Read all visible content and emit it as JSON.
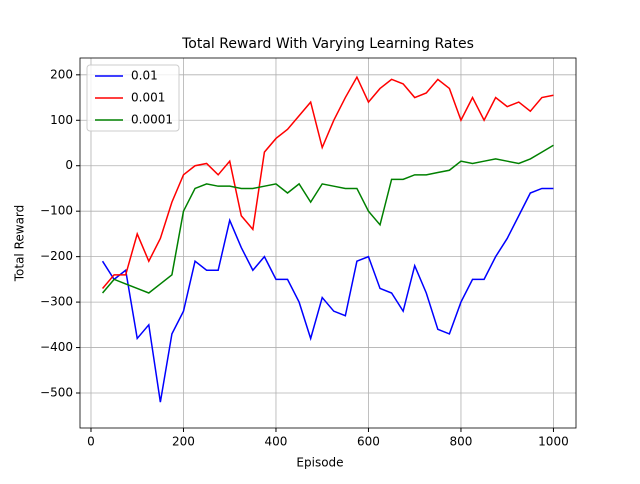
{
  "chart_data": {
    "type": "line",
    "title": "Total Reward With Varying Learning Rates",
    "xlabel": "Episode",
    "ylabel": "Total Reward",
    "x": [
      25,
      50,
      75,
      100,
      125,
      150,
      175,
      200,
      225,
      250,
      275,
      300,
      325,
      350,
      375,
      400,
      425,
      450,
      475,
      500,
      525,
      550,
      575,
      600,
      625,
      650,
      675,
      700,
      725,
      750,
      775,
      800,
      825,
      850,
      875,
      900,
      925,
      950,
      975,
      1000
    ],
    "series": [
      {
        "name": "0.01",
        "color": "#0000ff",
        "values": [
          -210,
          -250,
          -230,
          -380,
          -350,
          -520,
          -370,
          -320,
          -210,
          -230,
          -230,
          -120,
          -180,
          -230,
          -200,
          -250,
          -250,
          -300,
          -380,
          -290,
          -320,
          -330,
          -210,
          -200,
          -270,
          -280,
          -320,
          -220,
          -280,
          -360,
          -370,
          -300,
          -250,
          -250,
          -200,
          -160,
          -110,
          -60,
          -50,
          -50
        ]
      },
      {
        "name": "0.001",
        "color": "#ff0000",
        "values": [
          -270,
          -240,
          -240,
          -150,
          -210,
          -160,
          -80,
          -20,
          0,
          5,
          -20,
          10,
          -110,
          -140,
          30,
          60,
          80,
          110,
          140,
          40,
          100,
          150,
          195,
          140,
          170,
          190,
          180,
          150,
          160,
          190,
          170,
          100,
          150,
          100,
          150,
          130,
          140,
          120,
          150,
          155
        ]
      },
      {
        "name": "0.0001",
        "color": "#008000",
        "values": [
          -280,
          -250,
          -260,
          -270,
          -280,
          -260,
          -240,
          -100,
          -50,
          -40,
          -45,
          -45,
          -50,
          -50,
          -45,
          -40,
          -60,
          -40,
          -80,
          -40,
          -45,
          -50,
          -50,
          -100,
          -130,
          -30,
          -30,
          -20,
          -20,
          -15,
          -10,
          10,
          5,
          10,
          15,
          10,
          5,
          15,
          30,
          45
        ]
      }
    ],
    "xlim": [
      -23.75,
      1048.75
    ],
    "ylim": [
      -577,
      237
    ],
    "xticks": [
      0,
      200,
      400,
      600,
      800,
      1000
    ],
    "yticks": [
      {
        "value": -500,
        "label": "−500"
      },
      {
        "value": -400,
        "label": "−400"
      },
      {
        "value": -300,
        "label": "−300"
      },
      {
        "value": -200,
        "label": "−200"
      },
      {
        "value": -100,
        "label": "−100"
      },
      0,
      100,
      200
    ],
    "grid": true,
    "legend": "upper-left"
  }
}
